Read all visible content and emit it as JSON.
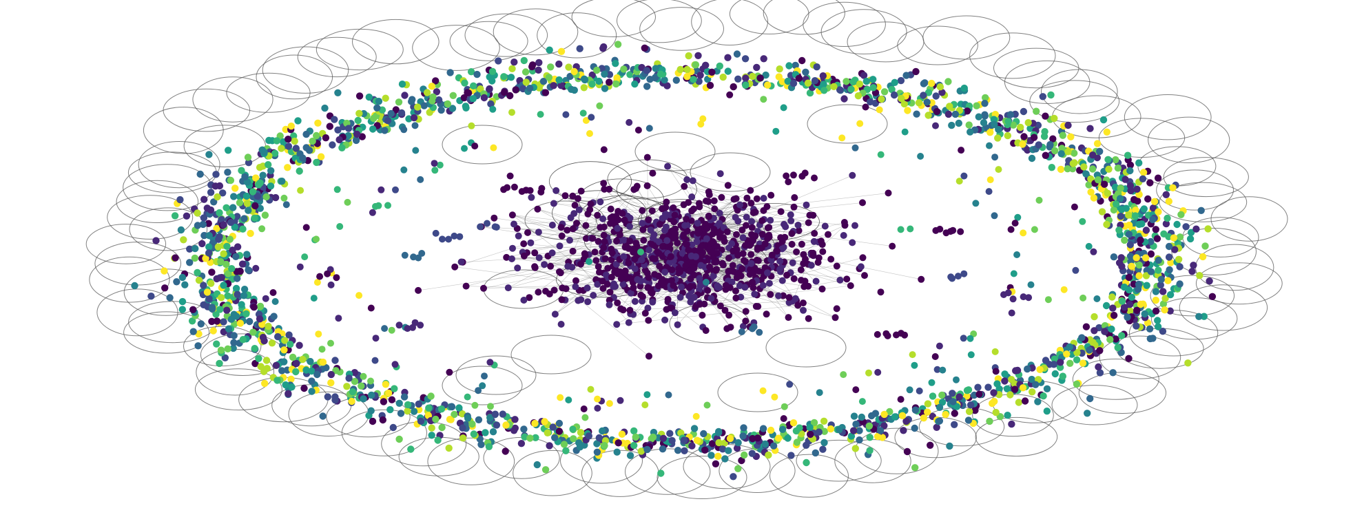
{
  "graph": {
    "type": "network",
    "layout": "ring-with-dense-core",
    "colormap": "viridis",
    "edge_color": "#555555",
    "node_colors": [
      "#440154",
      "#482878",
      "#3e4989",
      "#31688e",
      "#26828e",
      "#1f9e89",
      "#35b779",
      "#6ece58",
      "#b5de2b",
      "#fde725"
    ],
    "core_node_color": "#440154",
    "core_node_color_alt": "#482878",
    "background": "#ffffff",
    "text": []
  }
}
